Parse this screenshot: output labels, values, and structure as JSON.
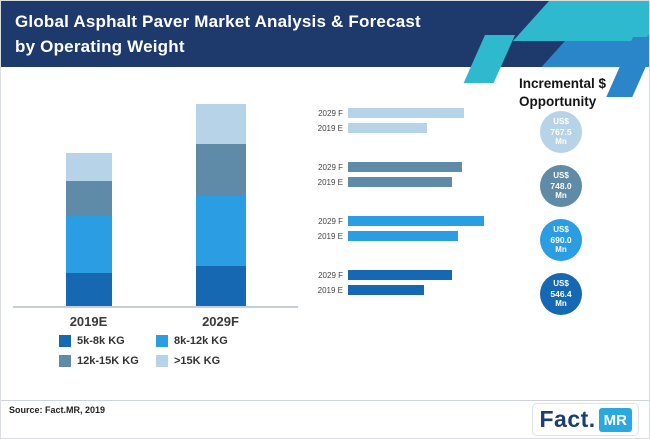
{
  "header": {
    "title_line1": "Global Asphalt Paver Market Analysis & Forecast",
    "title_line2": "by Operating Weight"
  },
  "colors": {
    "banner_bg": "#1e3a6d",
    "dark_blue": "#1568b1",
    "bright_blue": "#2b9de2",
    "slate_blue": "#5f8aa8",
    "pale_blue": "#b6d3e7",
    "teal_accent": "#2fb9cf",
    "mid_blue_accent": "#2a86c8"
  },
  "chart_data": [
    {
      "type": "bar",
      "stacked": true,
      "orientation": "vertical",
      "title": "Market size by operating weight (stacked)",
      "categories": [
        "2019E",
        "2029F"
      ],
      "series": [
        {
          "name": "5k-8k KG",
          "color": "#1568b1",
          "values": [
            33,
            40
          ]
        },
        {
          "name": "8k-12k KG",
          "color": "#2b9de2",
          "values": [
            57,
            70
          ]
        },
        {
          "name": "12k-15K KG",
          "color": "#5f8aa8",
          "values": [
            35,
            52
          ]
        },
        {
          "name": ">15K KG",
          "color": "#b6d3e7",
          "values": [
            28,
            40
          ]
        }
      ],
      "value_unit": "relative length (no numeric axis shown)",
      "legend_position": "bottom",
      "grid": false
    },
    {
      "type": "bar",
      "stacked": false,
      "orientation": "horizontal",
      "title": "Incremental $ Opportunity by segment",
      "row_labels": [
        "2029 F",
        "2019 E"
      ],
      "groups": [
        {
          "color": "#b6d3e7",
          "values": [
            116,
            79
          ],
          "badge": {
            "currency": "US$",
            "value": "767.5",
            "unit": "Mn"
          }
        },
        {
          "color": "#5f8aa8",
          "values": [
            114,
            104
          ],
          "badge": {
            "currency": "US$",
            "value": "748.0",
            "unit": "Mn"
          }
        },
        {
          "color": "#2b9de2",
          "values": [
            136,
            110
          ],
          "badge": {
            "currency": "US$",
            "value": "690.0",
            "unit": "Mn"
          }
        },
        {
          "color": "#1568b1",
          "values": [
            104,
            76
          ],
          "badge": {
            "currency": "US$",
            "value": "546.4",
            "unit": "Mn"
          }
        }
      ],
      "value_unit": "relative length (no numeric axis shown)",
      "grid": false
    }
  ],
  "right_panel": {
    "heading": "Incremental $ Opportunity"
  },
  "footer": {
    "source": "Source: Fact.MR, 2019",
    "logo_fact": "Fact.",
    "logo_mr": "MR"
  }
}
